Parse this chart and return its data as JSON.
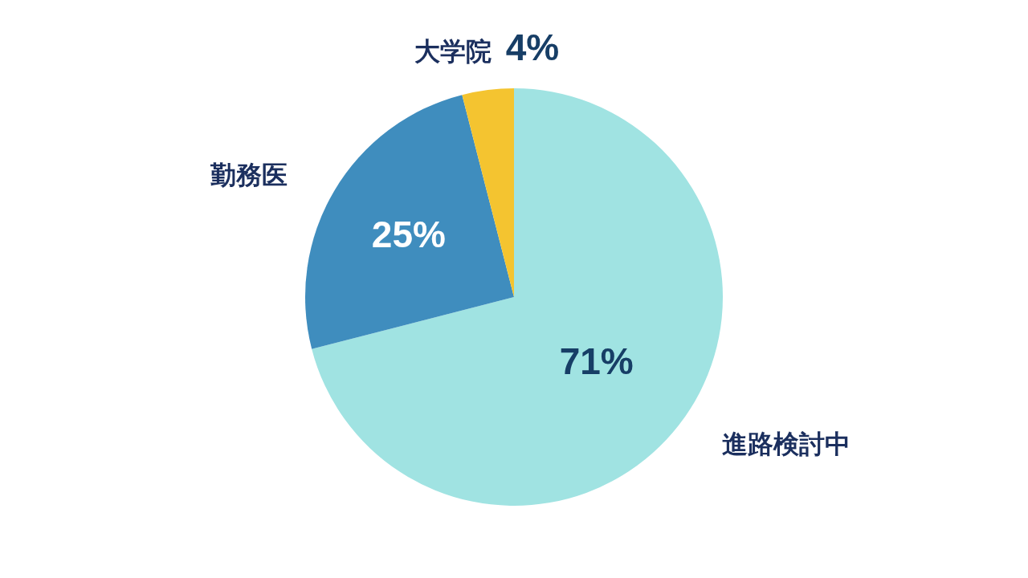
{
  "chart_data": {
    "type": "pie",
    "categories": [
      "進路検討中",
      "勤務医",
      "大学院"
    ],
    "values": [
      71,
      25,
      4
    ],
    "value_labels": [
      "71%",
      "25%",
      "4%"
    ],
    "colors": [
      "#a0e3e2",
      "#3f8dbe",
      "#f4c430"
    ],
    "legend": false
  }
}
